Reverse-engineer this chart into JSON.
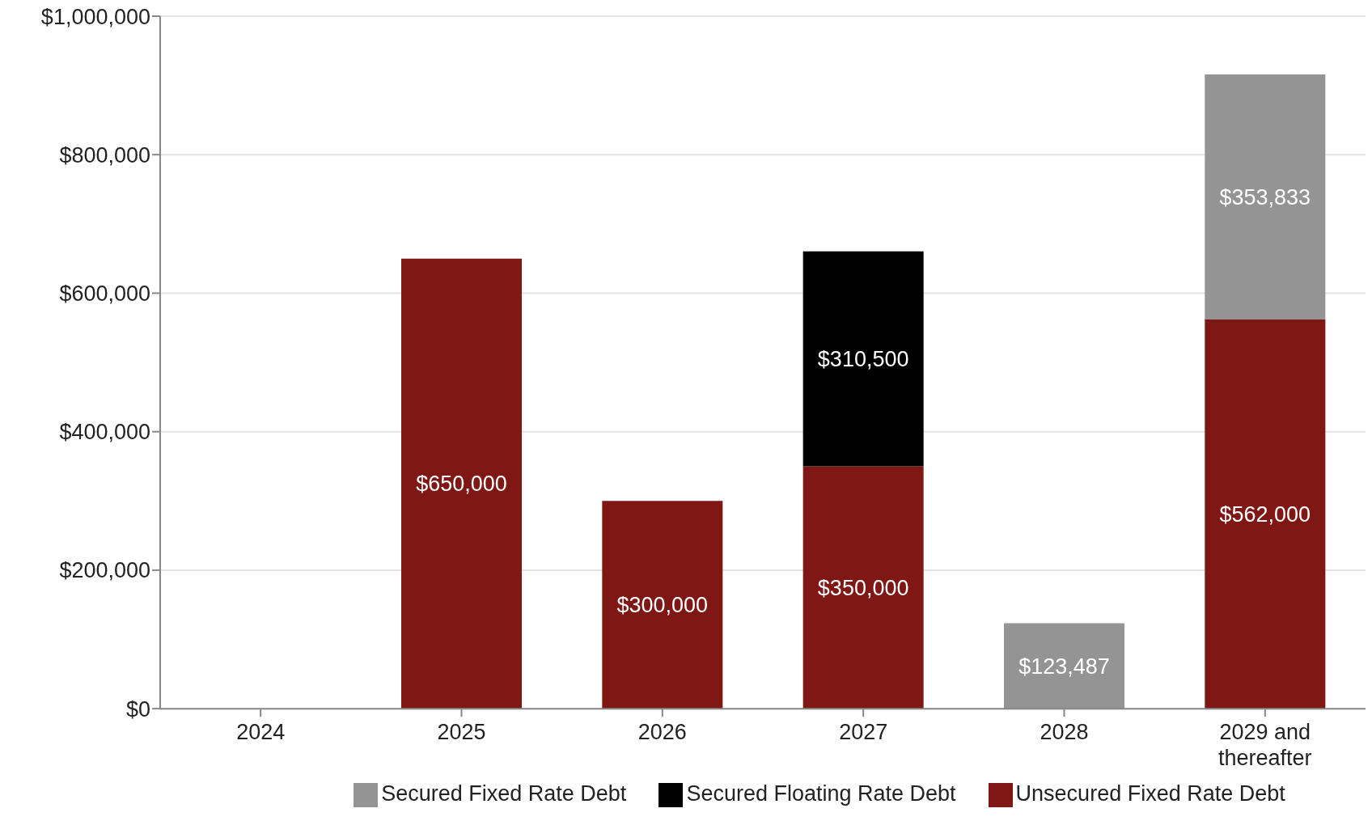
{
  "chart_data": {
    "type": "bar",
    "stacked": true,
    "categories": [
      "2024",
      "2025",
      "2026",
      "2027",
      "2028",
      "2029 and thereafter"
    ],
    "series": [
      {
        "name": "Unsecured Fixed Rate Debt",
        "color": "#7f1815",
        "values": [
          null,
          650000,
          300000,
          350000,
          null,
          562000
        ],
        "value_labels": [
          null,
          "$650,000",
          "$300,000",
          "$350,000",
          null,
          "$562,000"
        ]
      },
      {
        "name": "Secured Floating Rate Debt",
        "color": "#000000",
        "values": [
          null,
          null,
          null,
          310500,
          null,
          null
        ],
        "value_labels": [
          null,
          null,
          null,
          "$310,500",
          null,
          null
        ]
      },
      {
        "name": "Secured Fixed Rate Debt",
        "color": "#949494",
        "values": [
          null,
          null,
          null,
          null,
          123487,
          353833
        ],
        "value_labels": [
          null,
          null,
          null,
          null,
          "$123,487",
          "$353,833"
        ]
      }
    ],
    "ylim": [
      0,
      1000000
    ],
    "yticks": [
      {
        "value": 0,
        "label": "$0"
      },
      {
        "value": 200000,
        "label": "$200,000"
      },
      {
        "value": 400000,
        "label": "$400,000"
      },
      {
        "value": 600000,
        "label": "$600,000"
      },
      {
        "value": 800000,
        "label": "$800,000"
      },
      {
        "value": 1000000,
        "label": "$1,000,000"
      }
    ],
    "grid": "y",
    "legend": "bottom"
  }
}
